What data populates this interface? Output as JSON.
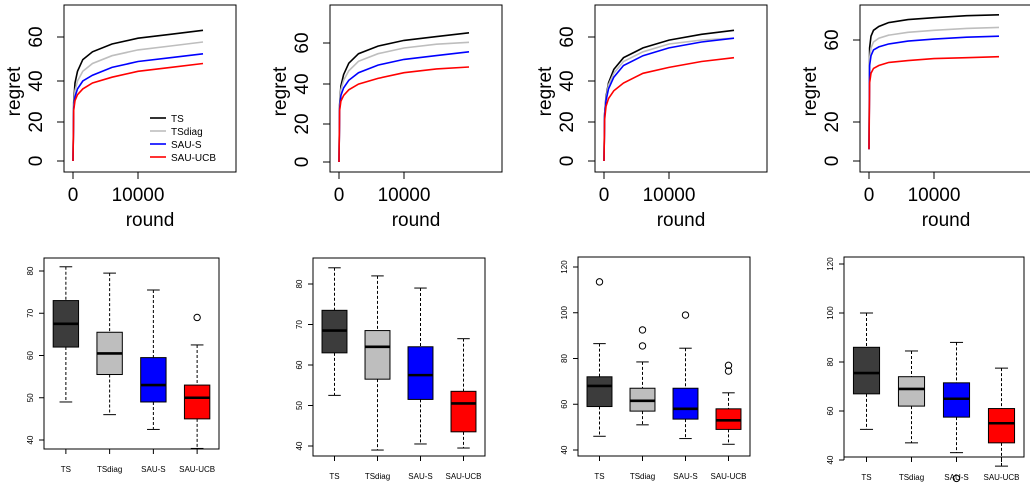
{
  "chart_data": [
    {
      "type": "line",
      "xlabel": "round",
      "ylabel": "regret",
      "xlim": [
        0,
        20000
      ],
      "ylim": [
        0,
        67
      ],
      "xticks": [
        "0",
        "10000"
      ],
      "yticks": [
        "0",
        "20",
        "40",
        "60"
      ],
      "legend": {
        "placement": "bottom-right"
      },
      "series": [
        {
          "name": "TS",
          "color": "#000000",
          "x": [
            0,
            100,
            300,
            700,
            1500,
            3000,
            6000,
            10000,
            15000,
            20000
          ],
          "values": [
            0,
            30,
            40,
            46,
            52,
            56,
            60,
            63,
            65,
            67
          ]
        },
        {
          "name": "TSdiag",
          "color": "#bebebe",
          "x": [
            0,
            100,
            300,
            700,
            1500,
            3000,
            6000,
            10000,
            15000,
            20000
          ],
          "values": [
            0,
            28,
            36,
            41,
            46,
            50,
            54,
            57,
            59,
            61
          ]
        },
        {
          "name": "SAU-S",
          "color": "#0000ff",
          "x": [
            0,
            100,
            300,
            700,
            1500,
            3000,
            6000,
            10000,
            15000,
            20000
          ],
          "values": [
            0,
            27,
            33,
            37,
            41,
            44,
            48,
            51,
            53,
            55
          ]
        },
        {
          "name": "SAU-UCB",
          "color": "#ff0000",
          "x": [
            0,
            100,
            300,
            700,
            1500,
            3000,
            6000,
            10000,
            15000,
            20000
          ],
          "values": [
            0,
            26,
            31,
            34,
            37,
            40,
            43,
            46,
            48,
            50
          ]
        }
      ]
    },
    {
      "type": "line",
      "xlabel": "round",
      "ylabel": "regret",
      "xlim": [
        0,
        20000
      ],
      "ylim": [
        0,
        68
      ],
      "xticks": [
        "0",
        "10000"
      ],
      "yticks": [
        "0",
        "20",
        "40",
        "60"
      ],
      "series": [
        {
          "name": "TS",
          "color": "#000000",
          "x": [
            0,
            100,
            300,
            700,
            1500,
            3000,
            6000,
            10000,
            15000,
            20000
          ],
          "values": [
            0,
            30,
            40,
            46,
            52,
            57,
            61,
            64,
            66,
            68
          ]
        },
        {
          "name": "TSdiag",
          "color": "#bebebe",
          "x": [
            0,
            100,
            300,
            700,
            1500,
            3000,
            6000,
            10000,
            15000,
            20000
          ],
          "values": [
            0,
            29,
            38,
            43,
            48,
            53,
            57,
            60,
            62,
            63
          ]
        },
        {
          "name": "SAU-S",
          "color": "#0000ff",
          "x": [
            0,
            100,
            300,
            700,
            1500,
            3000,
            6000,
            10000,
            15000,
            20000
          ],
          "values": [
            0,
            28,
            35,
            39,
            43,
            47,
            51,
            54,
            56,
            58
          ]
        },
        {
          "name": "SAU-UCB",
          "color": "#ff0000",
          "x": [
            0,
            100,
            300,
            700,
            1500,
            3000,
            6000,
            10000,
            15000,
            20000
          ],
          "values": [
            0,
            27,
            32,
            35,
            38,
            41,
            44,
            47,
            49,
            50
          ]
        }
      ]
    },
    {
      "type": "line",
      "xlabel": "round",
      "ylabel": "regret",
      "xlim": [
        0,
        20000
      ],
      "ylim": [
        0,
        67
      ],
      "xticks": [
        "0",
        "10000"
      ],
      "yticks": [
        "0",
        "20",
        "40",
        "60"
      ],
      "series": [
        {
          "name": "TS",
          "color": "#000000",
          "x": [
            0,
            100,
            300,
            700,
            1500,
            3000,
            6000,
            10000,
            15000,
            20000
          ],
          "values": [
            0,
            24,
            33,
            40,
            47,
            53,
            58,
            62,
            65,
            67
          ]
        },
        {
          "name": "TSdiag",
          "color": "#bebebe",
          "x": [
            0,
            100,
            300,
            700,
            1500,
            3000,
            6000,
            10000,
            15000,
            20000
          ],
          "values": [
            0,
            24,
            32,
            39,
            45,
            51,
            56,
            60,
            62,
            63
          ]
        },
        {
          "name": "SAU-S",
          "color": "#0000ff",
          "x": [
            0,
            100,
            300,
            700,
            1500,
            3000,
            6000,
            10000,
            15000,
            20000
          ],
          "values": [
            0,
            23,
            31,
            37,
            43,
            49,
            54,
            58,
            61,
            63
          ]
        },
        {
          "name": "SAU-UCB",
          "color": "#ff0000",
          "x": [
            0,
            100,
            300,
            700,
            1500,
            3000,
            6000,
            10000,
            15000,
            20000
          ],
          "values": [
            0,
            21,
            28,
            32,
            36,
            40,
            45,
            48,
            51,
            53
          ]
        }
      ]
    },
    {
      "type": "line",
      "xlabel": "round",
      "ylabel": "regret",
      "xlim": [
        0,
        20000
      ],
      "ylim": [
        0,
        76
      ],
      "xticks": [
        "0",
        "10000"
      ],
      "yticks": [
        "0",
        "20",
        "60"
      ],
      "series": [
        {
          "name": "TS",
          "color": "#000000",
          "x": [
            0,
            100,
            300,
            700,
            1500,
            3000,
            6000,
            10000,
            15000,
            20000
          ],
          "values": [
            6,
            58,
            64,
            67,
            69,
            71,
            72.5,
            73.5,
            74.5,
            75
          ]
        },
        {
          "name": "TSdiag",
          "color": "#bebebe",
          "x": [
            0,
            100,
            300,
            700,
            1500,
            3000,
            6000,
            10000,
            15000,
            20000
          ],
          "values": [
            6,
            53,
            58,
            61,
            63,
            64.5,
            66,
            67,
            68,
            68.5
          ]
        },
        {
          "name": "SAU-S",
          "color": "#0000ff",
          "x": [
            0,
            100,
            300,
            700,
            1500,
            3000,
            6000,
            10000,
            15000,
            20000
          ],
          "values": [
            6,
            49,
            54,
            57,
            58.5,
            60,
            61.5,
            62.5,
            63.5,
            64
          ]
        },
        {
          "name": "SAU-UCB",
          "color": "#ff0000",
          "x": [
            0,
            100,
            300,
            700,
            1500,
            3000,
            6000,
            10000,
            15000,
            20000
          ],
          "values": [
            6,
            40,
            45,
            47.5,
            49,
            50.5,
            51.5,
            52.5,
            53,
            53.5
          ]
        }
      ]
    },
    {
      "type": "box",
      "categories": [
        "TS",
        "TSdiag",
        "SAU-S",
        "SAU-UCB"
      ],
      "colors": [
        "#3c3c3c",
        "#bebebe",
        "#0000ff",
        "#ff0000"
      ],
      "ylim": [
        38,
        82
      ],
      "yticks": [
        "40",
        "50",
        "60",
        "70",
        "80"
      ],
      "boxes": [
        {
          "min": 49,
          "q1": 62,
          "median": 67.5,
          "q3": 73,
          "max": 81,
          "outliers": []
        },
        {
          "min": 46,
          "q1": 55.5,
          "median": 60.5,
          "q3": 65.5,
          "max": 79.5,
          "outliers": []
        },
        {
          "min": 42.5,
          "q1": 49,
          "median": 53,
          "q3": 59.5,
          "max": 75.5,
          "outliers": []
        },
        {
          "min": 38,
          "q1": 45,
          "median": 50,
          "q3": 53,
          "max": 62.5,
          "outliers": [
            69
          ]
        }
      ]
    },
    {
      "type": "box",
      "categories": [
        "TS",
        "TSdiag",
        "SAU-S",
        "SAU-UCB"
      ],
      "colors": [
        "#3c3c3c",
        "#bebebe",
        "#0000ff",
        "#ff0000"
      ],
      "ylim": [
        38,
        85
      ],
      "yticks": [
        "40",
        "50",
        "60",
        "70",
        "80"
      ],
      "boxes": [
        {
          "min": 52.5,
          "q1": 63,
          "median": 68.5,
          "q3": 73.5,
          "max": 84,
          "outliers": []
        },
        {
          "min": 39,
          "q1": 56.5,
          "median": 64.5,
          "q3": 68.5,
          "max": 82,
          "outliers": []
        },
        {
          "min": 40.5,
          "q1": 51.5,
          "median": 57.5,
          "q3": 64.5,
          "max": 79,
          "outliers": []
        },
        {
          "min": 39.5,
          "q1": 43.5,
          "median": 50.5,
          "q3": 53.5,
          "max": 66.5,
          "outliers": []
        }
      ]
    },
    {
      "type": "box",
      "categories": [
        "TS",
        "TSdiag",
        "SAU-S",
        "SAU-UCB"
      ],
      "colors": [
        "#3c3c3c",
        "#bebebe",
        "#0000ff",
        "#ff0000"
      ],
      "ylim": [
        40,
        120
      ],
      "yticks": [
        "40",
        "60",
        "80",
        "100",
        "120"
      ],
      "boxes": [
        {
          "min": 46,
          "q1": 59,
          "median": 68,
          "q3": 72,
          "max": 86.5,
          "outliers": [
            113.5
          ]
        },
        {
          "min": 51,
          "q1": 57,
          "median": 61.5,
          "q3": 67,
          "max": 78.5,
          "outliers": [
            85.5,
            92.5
          ]
        },
        {
          "min": 45,
          "q1": 53.5,
          "median": 58,
          "q3": 67,
          "max": 84.5,
          "outliers": [
            99
          ]
        },
        {
          "min": 42.5,
          "q1": 49,
          "median": 53,
          "q3": 58,
          "max": 65,
          "outliers": [
            74.5,
            77
          ]
        }
      ]
    },
    {
      "type": "box",
      "categories": [
        "TS",
        "TSdiag",
        "SAU-S",
        "SAU-UCB"
      ],
      "colors": [
        "#3c3c3c",
        "#bebebe",
        "#0000ff",
        "#ff0000"
      ],
      "ylim": [
        30,
        122
      ],
      "yticks": [
        "40",
        "60",
        "80",
        "100",
        "120"
      ],
      "boxes": [
        {
          "min": 52.5,
          "q1": 67,
          "median": 75.5,
          "q3": 86,
          "max": 100,
          "outliers": []
        },
        {
          "min": 47,
          "q1": 62,
          "median": 69,
          "q3": 74,
          "max": 84.5,
          "outliers": []
        },
        {
          "min": 43,
          "q1": 57.5,
          "median": 65,
          "q3": 71.5,
          "max": 88,
          "outliers": [
            32.5
          ]
        },
        {
          "min": 37.5,
          "q1": 47,
          "median": 55,
          "q3": 61,
          "max": 77.5,
          "outliers": []
        }
      ]
    }
  ]
}
